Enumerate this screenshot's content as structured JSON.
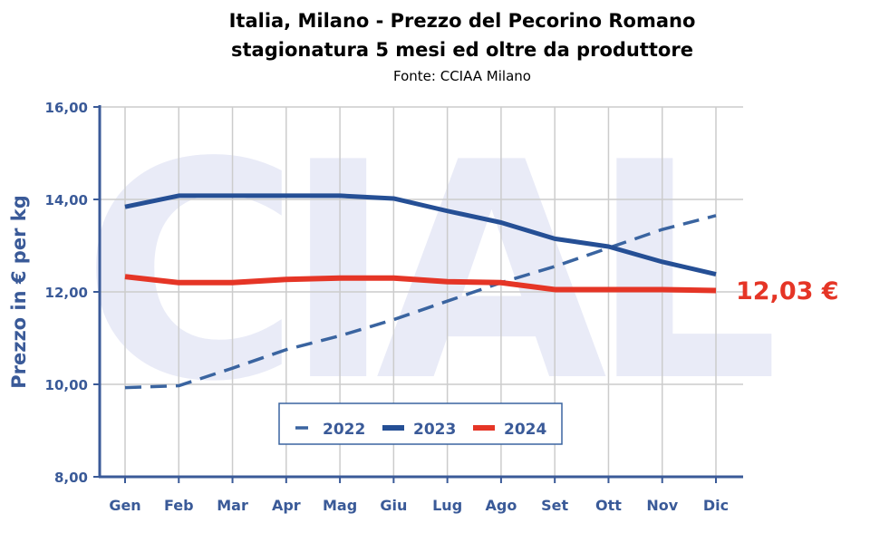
{
  "chart_data": {
    "type": "line",
    "title": [
      "Italia, Milano - Prezzo del Pecorino Romano",
      "stagionatura 5 mesi ed oltre da produttore"
    ],
    "subtitle": "Fonte: CCIAA Milano",
    "ylabel": "Prezzo in € per kg",
    "xlabel": "",
    "ylim": [
      8,
      16
    ],
    "yticks": [
      "8,00",
      "10,00",
      "12,00",
      "14,00",
      "16,00"
    ],
    "categories": [
      "Gen",
      "Feb",
      "Mar",
      "Apr",
      "Mag",
      "Giu",
      "Lug",
      "Ago",
      "Set",
      "Ott",
      "Nov",
      "Dic"
    ],
    "series": [
      {
        "name": "2022",
        "color": "#3a64a0",
        "dashed": true,
        "values": [
          9.93,
          9.97,
          10.35,
          10.75,
          11.05,
          11.4,
          11.8,
          12.2,
          12.55,
          12.95,
          13.35,
          13.65
        ]
      },
      {
        "name": "2023",
        "color": "#254f95",
        "dashed": false,
        "values": [
          13.84,
          14.08,
          14.08,
          14.08,
          14.08,
          14.02,
          13.75,
          13.5,
          13.15,
          12.98,
          12.65,
          12.38
        ]
      },
      {
        "name": "2024",
        "color": "#e53526",
        "dashed": false,
        "values": [
          12.33,
          12.2,
          12.2,
          12.27,
          12.3,
          12.3,
          12.22,
          12.2,
          12.05,
          12.05,
          12.05,
          12.03
        ]
      }
    ],
    "annotation": "12,03 €",
    "watermark": "CIAL",
    "grid": true,
    "legend": "bottom-center"
  }
}
